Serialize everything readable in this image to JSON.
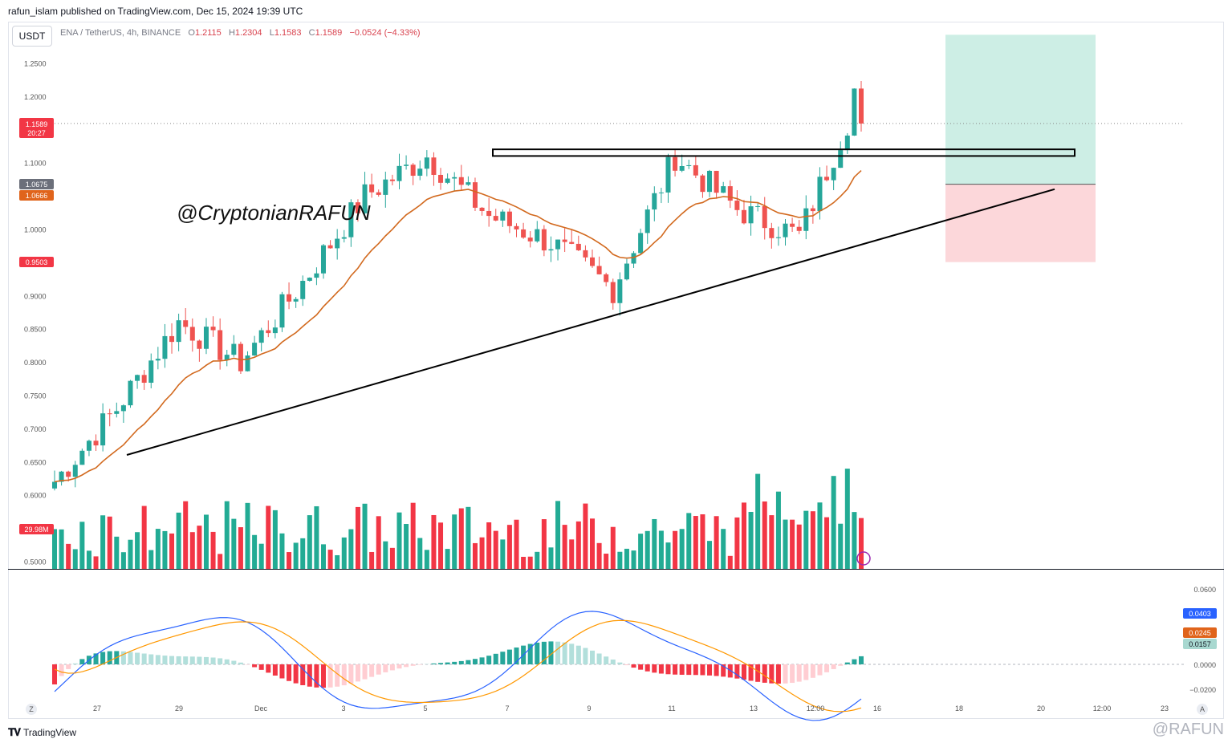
{
  "header": {
    "published_line": "rafun_islam published on TradingView.com, Dec 15, 2024 19:39 UTC"
  },
  "toolbar": {
    "currency": "USDT"
  },
  "legend": {
    "symbol": "ENA / TetherUS, 4h, BINANCE",
    "open_label": "O",
    "open": "1.2115",
    "high_label": "H",
    "high": "1.2304",
    "low_label": "L",
    "low": "1.1583",
    "close_label": "C",
    "close": "1.1589",
    "change": "−0.0524 (−4.33%)"
  },
  "price_badges": {
    "last_price": "1.1589",
    "countdown": "20:27",
    "ma_value_1": "1.0675",
    "ma_value_2": "1.0666",
    "stop_level": "0.9503",
    "volume": "29.98M"
  },
  "watermark": "@CryptonianRAFUN",
  "macd_badges": {
    "macd": "0.0403",
    "signal": "0.0245",
    "hist": "0.0157"
  },
  "footer": {
    "brand": "TradingView",
    "corner": "@RAFUN",
    "z_button": "Z",
    "a_button": "A"
  },
  "colors": {
    "up": "#26a69a",
    "down": "#ef5350",
    "up_vol": "#22ab94",
    "down_vol": "#f23645",
    "ema": "#d2691e",
    "macd_line": "#2962ff",
    "signal_line": "#ff9800",
    "target_zone": "#cdeee5",
    "stop_zone": "#fcd7da"
  },
  "chart_data": [
    {
      "type": "candlestick",
      "title": "ENA / TetherUS, 4h, BINANCE",
      "y_axis_ticks": [
        "1.2500",
        "1.2000",
        "1.1500",
        "1.1000",
        "1.0500",
        "1.0000",
        "0.9500",
        "0.9000",
        "0.8500",
        "0.8000",
        "0.7500",
        "0.7000",
        "0.6500",
        "0.6000",
        "0.5500",
        "0.5000"
      ],
      "x_axis_ticks": [
        "27",
        "29",
        "Dec",
        "3",
        "5",
        "7",
        "9",
        "11",
        "13",
        "12:00",
        "16",
        "18",
        "20",
        "12:00",
        "23"
      ],
      "ylim": [
        0.5,
        1.25
      ],
      "checkpoints": [
        {
          "x": "26 Nov",
          "y": 0.62
        },
        {
          "x": "28 Nov",
          "y": 0.73
        },
        {
          "x": "1 Dec",
          "y": 0.86
        },
        {
          "x": "3 Dec",
          "y": 0.8
        },
        {
          "x": "5 Dec",
          "y": 0.92
        },
        {
          "x": "6 Dec",
          "y": 1.05
        },
        {
          "x": "7 Dec",
          "y": 1.11
        },
        {
          "x": "9 Dec",
          "y": 1.02
        },
        {
          "x": "10 Dec",
          "y": 0.98
        },
        {
          "x": "11 Dec",
          "y": 0.91
        },
        {
          "x": "12 Dec",
          "y": 1.11
        },
        {
          "x": "13 Dec",
          "y": 1.03
        },
        {
          "x": "14 Dec",
          "y": 0.99
        },
        {
          "x": "15 Dec",
          "y": 1.2115
        }
      ],
      "resistance_level": [
        1.11,
        1.12
      ],
      "support_trendline": [
        {
          "x": "27 Nov",
          "y": 0.66
        },
        {
          "x": "20 Dec",
          "y": 1.06
        }
      ],
      "position": {
        "entry": 1.0675,
        "target": 1.2925,
        "stop": 0.9503
      },
      "last_close": 1.1589,
      "volume_last": "29.98M"
    },
    {
      "type": "line",
      "title": "MACD",
      "y_axis_ticks": [
        "0.0600",
        "0.0000",
        "−0.0200"
      ],
      "series": [
        {
          "values": [
            0.0403
          ]
        },
        {
          "values": [
            0.0245
          ]
        },
        {
          "values": [
            0.0157
          ]
        }
      ]
    }
  ]
}
